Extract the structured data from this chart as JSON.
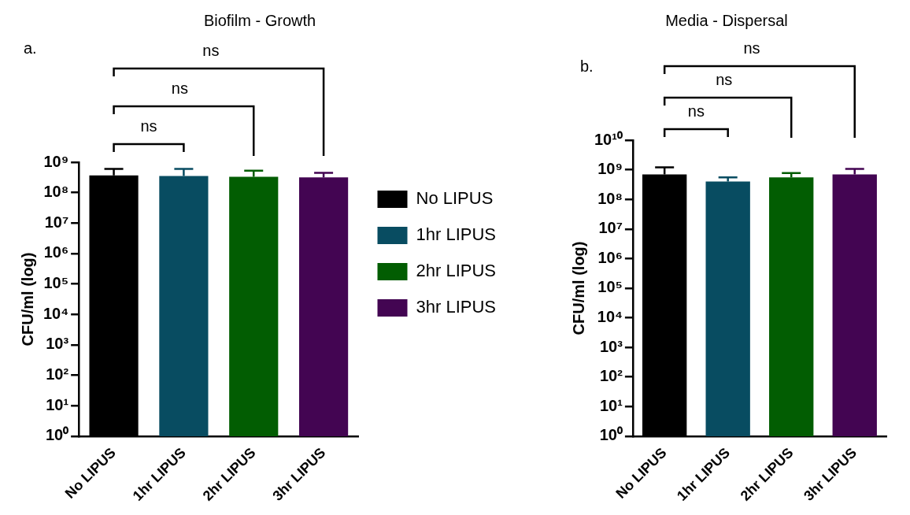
{
  "chart_data": [
    {
      "type": "bar",
      "title": "Biofilm - Growth",
      "ylabel": "CFU/ml (log)",
      "categories": [
        "No LIPUS",
        "1hr LIPUS",
        "2hr LIPUS",
        "3hr LIPUS"
      ],
      "series": [
        {
          "name": "No LIPUS",
          "color": "#000000",
          "values": [
            370000000,
            null,
            null,
            null
          ],
          "errors": [
            [
              370000000,
              600000000
            ],
            null,
            null,
            null
          ]
        },
        {
          "name": "1hr LIPUS",
          "color": "#084c61",
          "values": [
            null,
            350000000,
            null,
            null
          ],
          "errors": [
            null,
            [
              350000000,
              600000000
            ],
            null,
            null
          ]
        },
        {
          "name": "2hr LIPUS",
          "color": "#025d02",
          "values": [
            null,
            null,
            330000000,
            null
          ],
          "errors": [
            null,
            null,
            [
              330000000,
              530000000
            ],
            null
          ]
        },
        {
          "name": "3hr LIPUS",
          "color": "#430552",
          "values": [
            null,
            null,
            null,
            320000000
          ],
          "errors": [
            null,
            null,
            null,
            [
              320000000,
              450000000
            ]
          ]
        }
      ],
      "log": true,
      "ylim": [
        1,
        1000000000
      ],
      "yticks": [
        {
          "value": 1,
          "label": "10⁰"
        },
        {
          "value": 10,
          "label": "10¹"
        },
        {
          "value": 100,
          "label": "10²"
        },
        {
          "value": 1000,
          "label": "10³"
        },
        {
          "value": 10000,
          "label": "10⁴"
        },
        {
          "value": 100000,
          "label": "10⁵"
        },
        {
          "value": 1000000,
          "label": "10⁶"
        },
        {
          "value": 10000000,
          "label": "10⁷"
        },
        {
          "value": 100000000,
          "label": "10⁸"
        },
        {
          "value": 1000000000,
          "label": "10⁹"
        }
      ],
      "legend": "right",
      "annotations": [
        "a.",
        "ns",
        "ns",
        "ns"
      ]
    },
    {
      "type": "bar",
      "title": "Media - Dispersal",
      "ylabel": "CFU/ml (log)",
      "categories": [
        "No LIPUS",
        "1hr LIPUS",
        "2hr LIPUS",
        "3hr LIPUS"
      ],
      "values": [
        700000000,
        400000000,
        550000000,
        700000000
      ],
      "errors": [
        [
          700000000,
          1200000000
        ],
        [
          400000000,
          550000000
        ],
        [
          550000000,
          770000000
        ],
        [
          700000000,
          1070000000
        ]
      ],
      "colors": [
        "#000000",
        "#084c61",
        "#025d02",
        "#430552"
      ],
      "log": true,
      "ylim": [
        1,
        10000000000
      ],
      "yticks": [
        {
          "value": 1,
          "label": "10⁰"
        },
        {
          "value": 10,
          "label": "10¹"
        },
        {
          "value": 100,
          "label": "10²"
        },
        {
          "value": 1000,
          "label": "10³"
        },
        {
          "value": 10000,
          "label": "10⁴"
        },
        {
          "value": 100000,
          "label": "10⁵"
        },
        {
          "value": 1000000,
          "label": "10⁶"
        },
        {
          "value": 10000000,
          "label": "10⁷"
        },
        {
          "value": 100000000,
          "label": "10⁸"
        },
        {
          "value": 1000000000,
          "label": "10⁹"
        },
        {
          "value": 10000000000,
          "label": "10¹⁰"
        }
      ],
      "annotations": [
        "b.",
        "ns",
        "ns",
        "ns"
      ]
    }
  ]
}
